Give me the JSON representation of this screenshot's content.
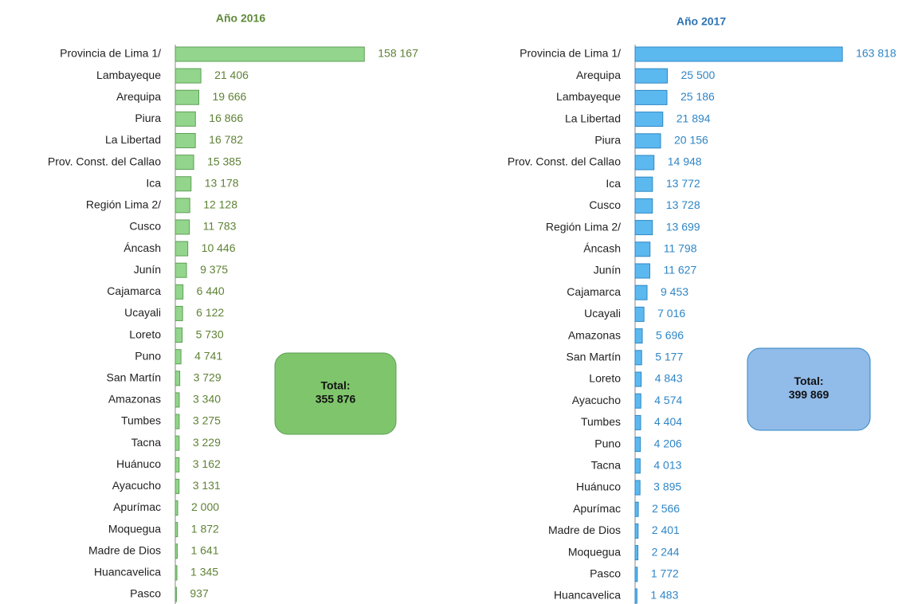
{
  "chart_data": [
    {
      "type": "bar",
      "orientation": "horizontal",
      "title": "Año 2016",
      "categories": [
        "Provincia de Lima 1/",
        "Lambayeque",
        "Arequipa",
        "Piura",
        "La Libertad",
        "Prov. Const. del Callao",
        "Ica",
        "Región Lima 2/",
        "Cusco",
        "Áncash",
        "Junín",
        "Cajamarca",
        "Ucayali",
        "Loreto",
        "Puno",
        "San Martín",
        "Amazonas",
        "Tumbes",
        "Tacna",
        "Huánuco",
        "Ayacucho",
        "Apurímac",
        "Moquegua",
        "Madre de Dios",
        "Huancavelica",
        "Pasco"
      ],
      "values": [
        158167,
        21406,
        19666,
        16866,
        16782,
        15385,
        13178,
        12128,
        11783,
        10446,
        9375,
        6440,
        6122,
        5730,
        4741,
        3729,
        3340,
        3275,
        3229,
        3162,
        3131,
        2000,
        1872,
        1641,
        1345,
        937
      ],
      "value_labels": [
        "158 167",
        "21 406",
        "19 666",
        "16 866",
        "16 782",
        "15 385",
        "13 178",
        "12 128",
        "11 783",
        "10 446",
        "9 375",
        "6 440",
        "6 122",
        "5 730",
        "4 741",
        "3 729",
        "3 340",
        "3 275",
        "3 229",
        "3 162",
        "3 131",
        "2 000",
        "1 872",
        "1 641",
        "1 345",
        "937"
      ],
      "color": "#93d58c",
      "edge_color": "#5e9f55",
      "label_color": "#5f8236",
      "title_color": "#5f8a3a",
      "xlim": [
        0,
        160000
      ],
      "annotation": [
        "Total:",
        "355 876"
      ],
      "annotation_color": "#7fc56c"
    },
    {
      "type": "bar",
      "orientation": "horizontal",
      "title": "Año 2017",
      "categories": [
        "Provincia de Lima 1/",
        "Arequipa",
        "Lambayeque",
        "La Libertad",
        "Piura",
        "Prov. Const. del Callao",
        "Ica",
        "Cusco",
        "Región Lima 2/",
        "Áncash",
        "Junín",
        "Cajamarca",
        "Ucayali",
        "Amazonas",
        "San Martín",
        "Loreto",
        "Ayacucho",
        "Tumbes",
        "Puno",
        "Tacna",
        "Huánuco",
        "Apurímac",
        "Madre de Dios",
        "Moquegua",
        "Pasco",
        "Huancavelica"
      ],
      "values": [
        163818,
        25500,
        25186,
        21894,
        20156,
        14948,
        13772,
        13728,
        13699,
        11798,
        11627,
        9453,
        7016,
        5696,
        5177,
        4843,
        4574,
        4404,
        4206,
        4013,
        3895,
        2566,
        2401,
        2244,
        1772,
        1483
      ],
      "value_labels": [
        "163 818",
        "25 500",
        "25 186",
        "21 894",
        "20 156",
        "14 948",
        "13 772",
        "13 728",
        "13 699",
        "11 798",
        "11 627",
        "9 453",
        "7 016",
        "5 696",
        "5 177",
        "4 843",
        "4 574",
        "4 404",
        "4 206",
        "4 013",
        "3 895",
        "2 566",
        "2 401",
        "2 244",
        "1 772",
        "1 483"
      ],
      "color": "#5cb9f0",
      "edge_color": "#2f87c4",
      "label_color": "#2f86c6",
      "title_color": "#2e74b5",
      "xlim": [
        0,
        165000
      ],
      "annotation": [
        "Total:",
        "399 869"
      ],
      "annotation_color": "#91bbe8"
    }
  ]
}
